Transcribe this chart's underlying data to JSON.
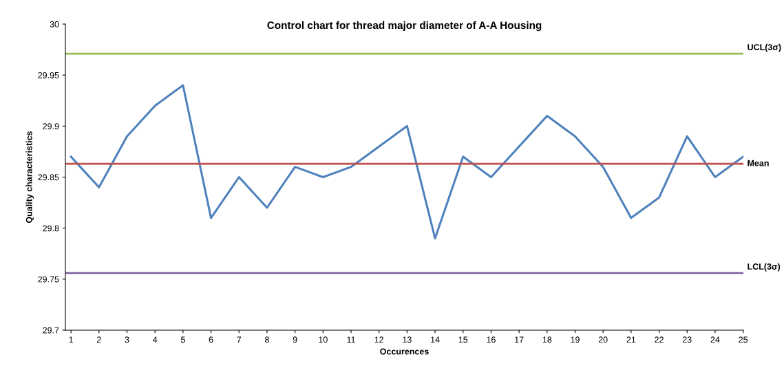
{
  "chart_data": {
    "type": "line",
    "title": "Control chart for thread major diameter of A-A Housing",
    "xlabel": "Occurences",
    "ylabel": "Quality characteristics",
    "categories": [
      "1",
      "2",
      "3",
      "4",
      "5",
      "6",
      "7",
      "8",
      "9",
      "10",
      "11",
      "12",
      "13",
      "14",
      "15",
      "16",
      "17",
      "18",
      "19",
      "20",
      "21",
      "22",
      "23",
      "24",
      "25"
    ],
    "series": [
      {
        "color": "#4f81bd",
        "values": [
          29.87,
          29.84,
          29.89,
          29.92,
          29.94,
          29.81,
          29.85,
          29.82,
          29.86,
          29.85,
          29.86,
          29.88,
          29.9,
          29.79,
          29.87,
          29.85,
          29.88,
          29.91,
          29.89,
          29.86,
          29.81,
          29.83,
          29.89,
          29.85,
          29.87
        ]
      }
    ],
    "ref_lines": [
      {
        "axis": "y",
        "value": 29.971,
        "label": "UCL(3σ)",
        "color": "#9bbb59"
      },
      {
        "axis": "y",
        "value": 29.863,
        "label": "Mean",
        "color": "#c0504d"
      },
      {
        "axis": "y",
        "value": 29.756,
        "label": "LCL(3σ)",
        "color": "#8064a2"
      }
    ],
    "ylim": [
      29.7,
      30
    ],
    "yticks": [
      29.7,
      29.75,
      29.8,
      29.85,
      29.9,
      29.95,
      30
    ],
    "grid": false,
    "legend": false,
    "marker": "none",
    "line_style": "solid"
  }
}
